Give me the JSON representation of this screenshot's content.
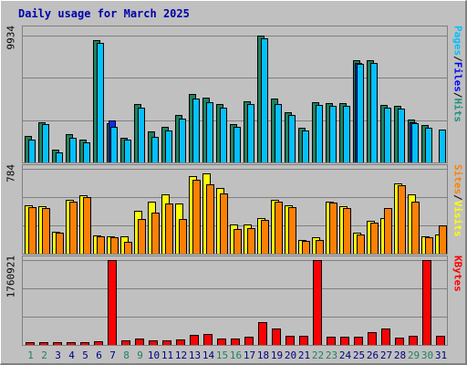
{
  "title": "Daily usage for March 2025",
  "colors": {
    "hits": "#00c0ff",
    "files": "#0030ff",
    "pages": "#00c0ff",
    "hits_shadow": "#208060",
    "visits": "#ffff00",
    "sites": "#ff8000",
    "kbytes": "#ff0000",
    "weekday": "#000080",
    "weekend": "#208060",
    "legend_hits": "#209080",
    "legend_files": "#0000ff",
    "legend_pages": "#00c0ff",
    "legend_visits": "#ffff00",
    "legend_sites": "#ff8000",
    "legend_kbytes": "#ff0000"
  },
  "legend": {
    "hits": "Hits",
    "files": "Files",
    "pages": "Pages",
    "visits": "Visits",
    "sites": "Sites",
    "kbytes": "KBytes",
    "sep": "/"
  },
  "chart_data": [
    {
      "type": "bar",
      "title": "Daily usage for March 2025",
      "categories": [
        "1",
        "2",
        "3",
        "4",
        "5",
        "6",
        "7",
        "8",
        "9",
        "10",
        "11",
        "12",
        "13",
        "14",
        "15",
        "16",
        "17",
        "18",
        "19",
        "20",
        "21",
        "22",
        "23",
        "24",
        "25",
        "26",
        "27",
        "28",
        "29",
        "30",
        "31"
      ],
      "weekend_days": [
        "1",
        "2",
        "8",
        "9",
        "15",
        "16",
        "22",
        "23",
        "29",
        "30"
      ],
      "ymax_label": "9934",
      "ylim": [
        0,
        9934
      ],
      "series": [
        {
          "name": "Hits",
          "values": [
            2040,
            3180,
            1010,
            2180,
            1820,
            9560,
            3050,
            1950,
            4550,
            2430,
            2810,
            3700,
            5360,
            5050,
            4580,
            2980,
            4820,
            9934,
            5000,
            3900,
            2750,
            4720,
            4650,
            4650,
            8020,
            8020,
            4490,
            4400,
            3390,
            2920,
            0
          ]
        },
        {
          "name": "Files",
          "values": [
            0,
            0,
            0,
            0,
            0,
            0,
            3270,
            0,
            0,
            0,
            0,
            0,
            0,
            0,
            0,
            0,
            0,
            0,
            0,
            0,
            0,
            0,
            0,
            0,
            7820,
            0,
            0,
            0,
            3180,
            0,
            0
          ]
        },
        {
          "name": "Pages",
          "values": [
            1800,
            3000,
            800,
            1950,
            1600,
            9360,
            2800,
            1800,
            4300,
            2000,
            2500,
            3400,
            5000,
            4700,
            4300,
            2800,
            4600,
            9700,
            4600,
            3700,
            2500,
            4500,
            4400,
            4400,
            7700,
            7800,
            4300,
            4200,
            3100,
            2700,
            2600
          ]
        }
      ]
    },
    {
      "type": "bar",
      "ymax_label": "784",
      "ylim": [
        0,
        784
      ],
      "series": [
        {
          "name": "Visits",
          "values": [
            450,
            440,
            200,
            500,
            540,
            170,
            160,
            160,
            400,
            480,
            550,
            460,
            720,
            740,
            610,
            270,
            270,
            330,
            500,
            450,
            130,
            150,
            480,
            440,
            190,
            300,
            330,
            650,
            550,
            160,
            180
          ]
        },
        {
          "name": "Sites",
          "values": [
            430,
            420,
            190,
            480,
            520,
            160,
            150,
            110,
            320,
            380,
            460,
            320,
            680,
            640,
            560,
            230,
            240,
            310,
            480,
            430,
            120,
            130,
            470,
            420,
            180,
            290,
            420,
            630,
            480,
            150,
            260
          ]
        }
      ]
    },
    {
      "type": "bar",
      "ymax_label": "1760921",
      "ylim": [
        0,
        1760921
      ],
      "series": [
        {
          "name": "KBytes",
          "values": [
            60000,
            55000,
            50000,
            55000,
            60000,
            70000,
            1760921,
            100000,
            140000,
            100000,
            90000,
            110000,
            210000,
            230000,
            140000,
            140000,
            170000,
            480000,
            340000,
            190000,
            190000,
            1760921,
            170000,
            170000,
            170000,
            260000,
            350000,
            160000,
            190000,
            1760921,
            190000
          ]
        }
      ]
    }
  ]
}
